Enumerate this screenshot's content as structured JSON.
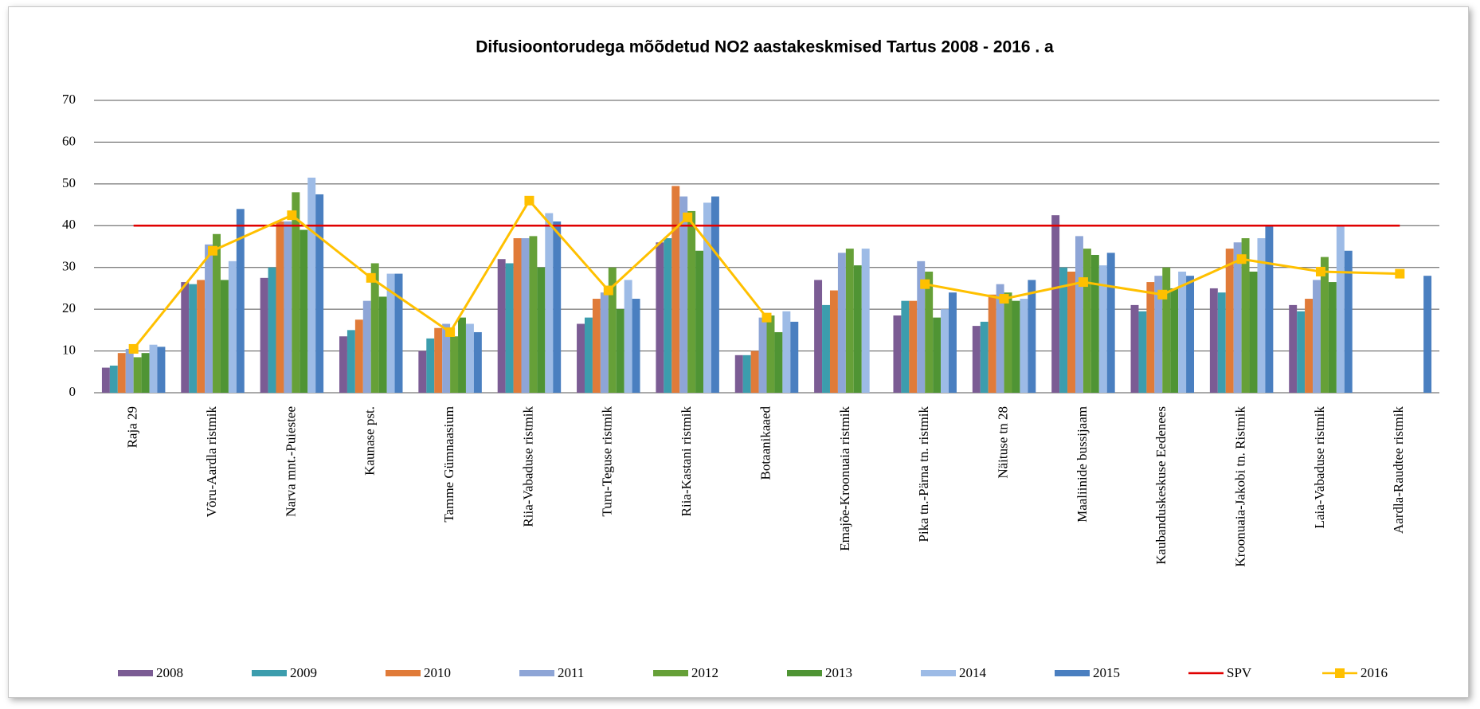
{
  "chart_data": {
    "type": "bar",
    "title": "Difusioontorudega mõõdetud NO2 aastakeskmised Tartus 2008  - 2016 . a",
    "categories": [
      "Raja 29",
      "Võru-Aardla ristmik",
      "Narva mnt.-Puiestee",
      "Kaunase pst.",
      "Tamme Gümnaasium",
      "Riia-Vabaduse ristmik",
      "Turu-Teguse ristmik",
      "Riia-Kastani ristmik",
      "Botaanikaaed",
      "Emajõe-Kroonuaia ristmik",
      "Pika tn.-Pärna tn. ristmik",
      "Näituse tn 28",
      "Maaliinide bussijaam",
      "Kaubanduskeskuse Eedenees",
      "Kroonuaia-Jakobi tn. Ristmik",
      "Laia-Vabaduse ristmik",
      "Aardla-Raudtee ristmik"
    ],
    "series": [
      {
        "name": "2008",
        "color": "#7b5c94",
        "values": [
          6,
          26.5,
          27.5,
          13.5,
          10,
          32,
          16.5,
          36,
          9,
          27,
          18.5,
          16,
          42.5,
          21,
          25,
          21,
          null
        ]
      },
      {
        "name": "2009",
        "color": "#3c9dad",
        "values": [
          6.5,
          26,
          30,
          15,
          13,
          31,
          18,
          37,
          9,
          21,
          22,
          17,
          30,
          19.5,
          24,
          19.5,
          null
        ]
      },
      {
        "name": "2010",
        "color": "#e07b39",
        "values": [
          9.5,
          27,
          41,
          17.5,
          15.5,
          37,
          22.5,
          49.5,
          10,
          24.5,
          22,
          23.5,
          29,
          26.5,
          34.5,
          22.5,
          null
        ]
      },
      {
        "name": "2011",
        "color": "#8ea5d6",
        "values": [
          10.5,
          35.5,
          41,
          22,
          16.5,
          37,
          24,
          47,
          18,
          33.5,
          31.5,
          26,
          37.5,
          28,
          36,
          27,
          null
        ]
      },
      {
        "name": "2012",
        "color": "#66a038",
        "values": [
          8.5,
          38,
          48,
          31,
          13.5,
          37.5,
          30,
          43.5,
          18.5,
          34.5,
          29,
          24,
          34.5,
          30,
          37,
          32.5,
          null
        ]
      },
      {
        "name": "2013",
        "color": "#4f9434",
        "values": [
          9.5,
          27,
          39,
          23,
          18,
          30,
          20,
          34,
          14.5,
          30.5,
          18,
          22,
          33,
          25,
          29,
          26.5,
          null
        ]
      },
      {
        "name": "2014",
        "color": "#9dbbe6",
        "values": [
          11.5,
          31.5,
          51.5,
          28.5,
          16.5,
          43,
          27,
          45.5,
          19.5,
          34.5,
          20,
          22.5,
          30.5,
          29,
          37,
          40,
          null
        ]
      },
      {
        "name": "2015",
        "color": "#4a7fc0",
        "values": [
          11,
          44,
          47.5,
          28.5,
          14.5,
          41,
          22.5,
          47,
          17,
          null,
          24,
          27,
          33.5,
          28,
          40,
          34,
          28
        ]
      },
      {
        "name": "SPV",
        "color": "#e00000",
        "type": "line",
        "values": [
          40,
          40,
          40,
          40,
          40,
          40,
          40,
          40,
          40,
          40,
          40,
          40,
          40,
          40,
          40,
          40,
          40
        ]
      },
      {
        "name": "2016",
        "color": "#ffc000",
        "type": "line",
        "marker": "square",
        "values": [
          10.5,
          34,
          42.5,
          27.5,
          14.5,
          46,
          24.5,
          42,
          18,
          null,
          26,
          22.5,
          26.5,
          23.5,
          32,
          29,
          28.5
        ]
      }
    ],
    "ylim": [
      0,
      70
    ],
    "yticks": [
      0,
      10,
      20,
      30,
      40,
      50,
      60,
      70
    ],
    "grid": true,
    "legend": "bottom"
  }
}
